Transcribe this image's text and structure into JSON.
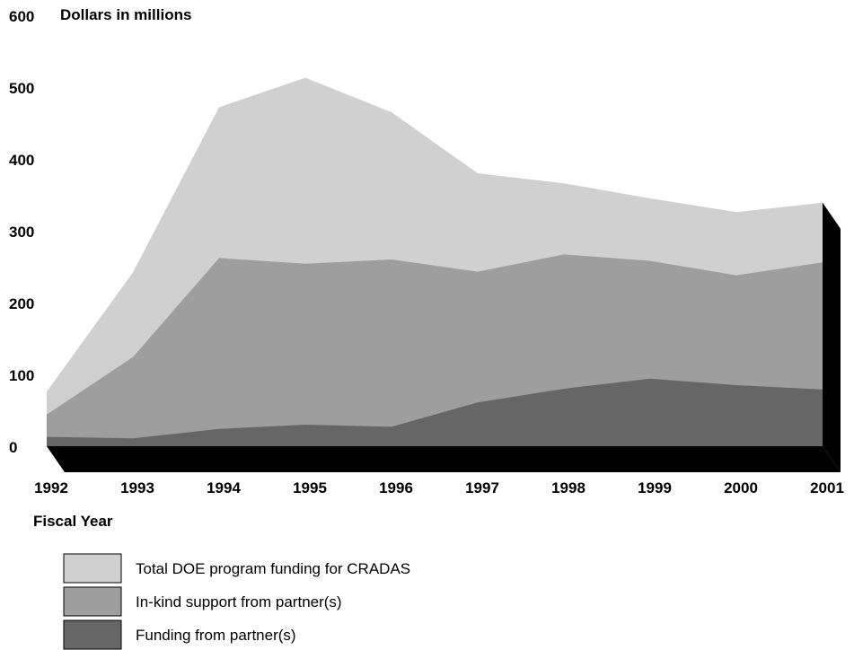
{
  "chart_data": {
    "type": "area",
    "stacked": false,
    "ylabel": "Dollars in millions",
    "xlabel": "Fiscal Year",
    "x": [
      "1992",
      "1993",
      "1994",
      "1995",
      "1996",
      "1997",
      "1998",
      "1999",
      "2000",
      "2001"
    ],
    "y_ticks": [
      "0",
      "100",
      "200",
      "300",
      "400",
      "500",
      "600"
    ],
    "ylim": [
      0,
      600
    ],
    "series": [
      {
        "name": "Total DOE program funding for CRADAS",
        "color": "#d0d0d0",
        "values": [
          76,
          242,
          472,
          513,
          465,
          380,
          366,
          345,
          326,
          339
        ]
      },
      {
        "name": "In-kind support from partner(s)",
        "color": "#9e9e9e",
        "values": [
          44,
          124,
          262,
          254,
          260,
          243,
          267,
          258,
          238,
          256
        ]
      },
      {
        "name": "Funding from partner(s)",
        "color": "#666666",
        "values": [
          13,
          11,
          24,
          30,
          27,
          61,
          80,
          94,
          85,
          79
        ]
      }
    ],
    "legend_position": "bottom-left",
    "grid": false,
    "base_3d_color": "#000000"
  }
}
